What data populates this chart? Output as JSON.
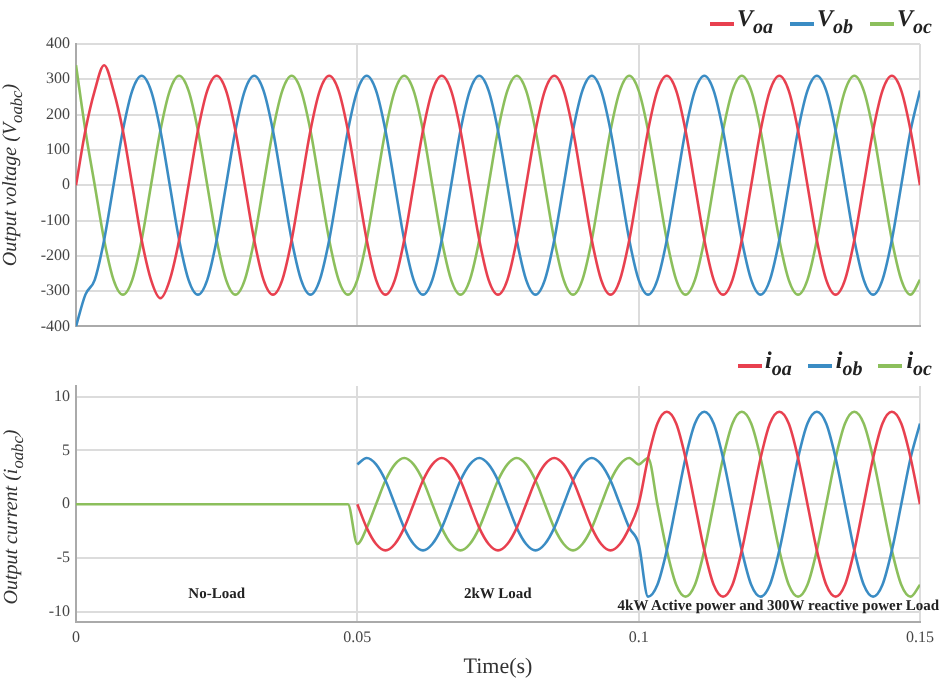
{
  "chart_data": [
    {
      "type": "line",
      "ylabel": "Output voltage (V$_{oabc}$)",
      "legend": "top right",
      "grid": true,
      "tick_labels": "y",
      "xlim": [
        0,
        0.15
      ],
      "xticks": [
        0,
        0.05,
        0.1,
        0.15
      ],
      "ylim": [
        -400,
        400
      ],
      "yticks": [
        -400,
        -300,
        -200,
        -100,
        0,
        100,
        200,
        300,
        400
      ],
      "x": [
        0,
        0.00167,
        0.00333,
        0.005,
        0.00667,
        0.00833,
        0.01,
        0.01167,
        0.01333,
        0.015,
        0.01667,
        0.01833,
        0.02,
        0.02167,
        0.02333,
        0.025,
        0.02667,
        0.02833,
        0.03,
        0.03167,
        0.03333,
        0.035,
        0.03667,
        0.03833,
        0.04,
        0.04167,
        0.04333,
        0.045,
        0.04667,
        0.04833,
        0.05,
        0.05167,
        0.05333,
        0.055,
        0.05667,
        0.05833,
        0.06,
        0.06167,
        0.06333,
        0.065,
        0.06667,
        0.06833,
        0.07,
        0.07167,
        0.07333,
        0.075,
        0.07667,
        0.07833,
        0.08,
        0.08167,
        0.08333,
        0.085,
        0.08667,
        0.08833,
        0.09,
        0.09167,
        0.09333,
        0.095,
        0.09667,
        0.09833,
        0.1,
        0.10167,
        0.10333,
        0.105,
        0.10667,
        0.10833,
        0.11,
        0.11167,
        0.11333,
        0.115,
        0.11667,
        0.11833,
        0.12,
        0.12167,
        0.12333,
        0.125,
        0.12667,
        0.12833,
        0.13,
        0.13167,
        0.13333,
        0.135,
        0.13667,
        0.13833,
        0.14,
        0.14167,
        0.14333,
        0.145,
        0.14667,
        0.14833,
        0.15
      ],
      "series": [
        {
          "name": "V$_{oa}$",
          "color": "#e8404f",
          "values": [
            0,
            155,
            268,
            340,
            268,
            155,
            0,
            -155,
            -268,
            -320,
            -268,
            -155,
            0,
            155,
            268,
            310,
            268,
            155,
            0,
            -155,
            -268,
            -310,
            -268,
            -155,
            0,
            155,
            268,
            310,
            268,
            155,
            0,
            -155,
            -268,
            -310,
            -268,
            -155,
            0,
            155,
            268,
            310,
            268,
            155,
            0,
            -155,
            -268,
            -310,
            -268,
            -155,
            0,
            155,
            268,
            310,
            268,
            155,
            0,
            -155,
            -268,
            -310,
            -268,
            -155,
            0,
            155,
            268,
            310,
            268,
            155,
            0,
            -155,
            -268,
            -310,
            -268,
            -155,
            0,
            155,
            268,
            310,
            268,
            155,
            0,
            -155,
            -268,
            -310,
            -268,
            -155,
            0,
            155,
            268,
            310,
            268,
            155,
            0
          ]
        },
        {
          "name": "V$_{ob}$",
          "color": "#3a8cc4",
          "values": [
            -400,
            -310,
            -268,
            -155,
            0,
            155,
            268,
            310,
            268,
            155,
            0,
            -155,
            -268,
            -310,
            -268,
            -155,
            0,
            155,
            268,
            310,
            268,
            155,
            0,
            -155,
            -268,
            -310,
            -268,
            -155,
            0,
            155,
            268,
            310,
            268,
            155,
            0,
            -155,
            -268,
            -310,
            -268,
            -155,
            0,
            155,
            268,
            310,
            268,
            155,
            0,
            -155,
            -268,
            -310,
            -268,
            -155,
            0,
            155,
            268,
            310,
            268,
            155,
            0,
            -155,
            -268,
            -310,
            -268,
            -155,
            0,
            155,
            268,
            310,
            268,
            155,
            0,
            -155,
            -268,
            -310,
            -268,
            -155,
            0,
            155,
            268,
            310,
            268,
            155,
            0,
            -155,
            -268,
            -310,
            -268,
            -155,
            0,
            155,
            268
          ]
        },
        {
          "name": "V$_{oc}$",
          "color": "#8cbf5c",
          "values": [
            340,
            155,
            0,
            -155,
            -268,
            -310,
            -268,
            -155,
            0,
            155,
            268,
            310,
            268,
            155,
            0,
            -155,
            -268,
            -310,
            -268,
            -155,
            0,
            155,
            268,
            310,
            268,
            155,
            0,
            -155,
            -268,
            -310,
            -268,
            -155,
            0,
            155,
            268,
            310,
            268,
            155,
            0,
            -155,
            -268,
            -310,
            -268,
            -155,
            0,
            155,
            268,
            310,
            268,
            155,
            0,
            -155,
            -268,
            -310,
            -268,
            -155,
            0,
            155,
            268,
            310,
            268,
            155,
            0,
            -155,
            -268,
            -310,
            -268,
            -155,
            0,
            155,
            268,
            310,
            268,
            155,
            0,
            -155,
            -268,
            -310,
            -268,
            -155,
            0,
            155,
            268,
            310,
            268,
            155,
            0,
            -155,
            -268,
            -310,
            -268
          ]
        }
      ]
    },
    {
      "type": "line",
      "ylabel": "Output current (i$_{oabc}$)",
      "xlabel": "Time(s)",
      "legend": "top right",
      "grid": true,
      "xlim": [
        0,
        0.15
      ],
      "xticks": [
        0,
        0.05,
        0.1,
        0.15
      ],
      "ylim": [
        -11,
        11
      ],
      "yticks": [
        -10,
        -5,
        0,
        5,
        10
      ],
      "annotations": [
        "No-Load",
        "2kW Load",
        "4kW Active power and 300W reactive power Load"
      ],
      "x": [
        0,
        0.00167,
        0.00333,
        0.005,
        0.00667,
        0.00833,
        0.01,
        0.01167,
        0.01333,
        0.015,
        0.01667,
        0.01833,
        0.02,
        0.02167,
        0.02333,
        0.025,
        0.02667,
        0.02833,
        0.03,
        0.03167,
        0.03333,
        0.035,
        0.03667,
        0.03833,
        0.04,
        0.04167,
        0.04333,
        0.045,
        0.04667,
        0.04833,
        0.05,
        0.05167,
        0.05333,
        0.055,
        0.05667,
        0.05833,
        0.06,
        0.06167,
        0.06333,
        0.065,
        0.06667,
        0.06833,
        0.07,
        0.07167,
        0.07333,
        0.075,
        0.07667,
        0.07833,
        0.08,
        0.08167,
        0.08333,
        0.085,
        0.08667,
        0.08833,
        0.09,
        0.09167,
        0.09333,
        0.095,
        0.09667,
        0.09833,
        0.1,
        0.10167,
        0.10333,
        0.105,
        0.10667,
        0.10833,
        0.11,
        0.11167,
        0.11333,
        0.115,
        0.11667,
        0.11833,
        0.12,
        0.12167,
        0.12333,
        0.125,
        0.12667,
        0.12833,
        0.13,
        0.13167,
        0.13333,
        0.135,
        0.13667,
        0.13833,
        0.14,
        0.14167,
        0.14333,
        0.145,
        0.14667,
        0.14833,
        0.15
      ],
      "series": [
        {
          "name": "i$_{oa}$",
          "color": "#e8404f",
          "values": [
            null,
            null,
            null,
            null,
            null,
            null,
            null,
            null,
            null,
            null,
            null,
            null,
            null,
            null,
            null,
            null,
            null,
            null,
            null,
            null,
            null,
            null,
            null,
            null,
            null,
            null,
            null,
            null,
            null,
            null,
            0,
            -2.2,
            -3.7,
            -4.3,
            -3.7,
            -2.2,
            0,
            2.2,
            3.7,
            4.3,
            3.7,
            2.2,
            0,
            -2.2,
            -3.7,
            -4.3,
            -3.7,
            -2.2,
            0,
            2.2,
            3.7,
            4.3,
            3.7,
            2.2,
            0,
            -2.2,
            -3.7,
            -4.3,
            -3.7,
            -2.2,
            0,
            4.3,
            7.5,
            8.6,
            7.5,
            4.3,
            0,
            -4.3,
            -7.5,
            -8.6,
            -7.5,
            -4.3,
            0,
            4.3,
            7.5,
            8.6,
            7.5,
            4.3,
            0,
            -4.3,
            -7.5,
            -8.6,
            -7.5,
            -4.3,
            0,
            4.3,
            7.5,
            8.6,
            7.5,
            4.3,
            0
          ]
        },
        {
          "name": "i$_{ob}$",
          "color": "#3a8cc4",
          "values": [
            null,
            null,
            null,
            null,
            null,
            null,
            null,
            null,
            null,
            null,
            null,
            null,
            null,
            null,
            null,
            null,
            null,
            null,
            null,
            null,
            null,
            null,
            null,
            null,
            null,
            null,
            null,
            null,
            null,
            null,
            3.7,
            4.3,
            3.7,
            2.2,
            0,
            -2.2,
            -3.7,
            -4.3,
            -3.7,
            -2.2,
            0,
            2.2,
            3.7,
            4.3,
            3.7,
            2.2,
            0,
            -2.2,
            -3.7,
            -4.3,
            -3.7,
            -2.2,
            0,
            2.2,
            3.7,
            4.3,
            3.7,
            2.2,
            0,
            -2.2,
            -3.7,
            -8.6,
            -7.5,
            -4.3,
            0,
            4.3,
            7.5,
            8.6,
            7.5,
            4.3,
            0,
            -4.3,
            -7.5,
            -8.6,
            -7.5,
            -4.3,
            0,
            4.3,
            7.5,
            8.6,
            7.5,
            4.3,
            0,
            -4.3,
            -7.5,
            -8.6,
            -7.5,
            -4.3,
            0,
            4.3,
            7.5
          ]
        },
        {
          "name": "i$_{oc}$",
          "color": "#8cbf5c",
          "values": [
            0,
            0,
            0,
            0,
            0,
            0,
            0,
            0,
            0,
            0,
            0,
            0,
            0,
            0,
            0,
            0,
            0,
            0,
            0,
            0,
            0,
            0,
            0,
            0,
            0,
            0,
            0,
            0,
            0,
            0,
            -3.7,
            -2.2,
            0,
            2.2,
            3.7,
            4.3,
            3.7,
            2.2,
            0,
            -2.2,
            -3.7,
            -4.3,
            -3.7,
            -2.2,
            0,
            2.2,
            3.7,
            4.3,
            3.7,
            2.2,
            0,
            -2.2,
            -3.7,
            -4.3,
            -3.7,
            -2.2,
            0,
            2.2,
            3.7,
            4.3,
            3.7,
            4.3,
            0,
            -4.3,
            -7.5,
            -8.6,
            -7.5,
            -4.3,
            0,
            4.3,
            7.5,
            8.6,
            7.5,
            4.3,
            0,
            -4.3,
            -7.5,
            -8.6,
            -7.5,
            -4.3,
            0,
            4.3,
            7.5,
            8.6,
            7.5,
            4.3,
            0,
            -4.3,
            -7.5,
            -8.6,
            -7.5
          ]
        }
      ]
    }
  ]
}
